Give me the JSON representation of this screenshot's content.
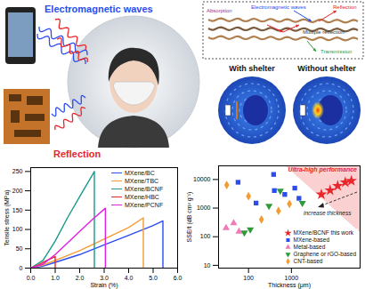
{
  "chart_data": [
    {
      "type": "line",
      "x_label": "Strain (%)",
      "y_label": "Tensile stress (MPa)",
      "xlim": [
        0,
        6
      ],
      "xticks": [
        0,
        1,
        2,
        3,
        4,
        5,
        6
      ],
      "ylim": [
        0,
        260
      ],
      "yticks": [
        0,
        50,
        100,
        150,
        200,
        250
      ],
      "legend": "upper right",
      "series": [
        {
          "name": "MXene/BC",
          "color": "#2b4cf0",
          "x": [
            0,
            0.5,
            1,
            2,
            3,
            4,
            5,
            5.4,
            5.4
          ],
          "values": [
            0,
            5,
            15,
            35,
            60,
            85,
            110,
            122,
            0
          ]
        },
        {
          "name": "MXene/TBC",
          "color": "#f39c34",
          "x": [
            0,
            0.5,
            1,
            2,
            3,
            4,
            4.6,
            4.6
          ],
          "values": [
            0,
            8,
            20,
            45,
            75,
            105,
            130,
            0
          ]
        },
        {
          "name": "MXene/BCNF",
          "color": "#1a9a8a",
          "x": [
            0,
            0.5,
            1,
            1.5,
            2,
            2.6,
            2.6
          ],
          "values": [
            0,
            20,
            70,
            130,
            185,
            250,
            0
          ]
        },
        {
          "name": "MXene/HBC",
          "color": "#e8262b",
          "x": [
            0,
            0.3,
            0.6,
            0.9,
            1.0,
            1.0
          ],
          "values": [
            0,
            8,
            18,
            27,
            30,
            0
          ]
        },
        {
          "name": "MXene/PCNF",
          "color": "#e020e0",
          "x": [
            0,
            0.5,
            1,
            1.5,
            2,
            2.5,
            3.05,
            3.05
          ],
          "values": [
            0,
            10,
            35,
            65,
            95,
            125,
            155,
            0
          ]
        }
      ]
    },
    {
      "type": "scatter",
      "x_label": "Thickness (μm)",
      "y_label": "SSE/t (dB cm² g⁻¹)",
      "log": true,
      "xlim": [
        20,
        40000
      ],
      "xticks": [
        100,
        1000
      ],
      "ylim": [
        8,
        30000
      ],
      "yticks": [
        10,
        100,
        1000,
        10000
      ],
      "legend": "lower right",
      "annotations": [
        "Ultra-high performance",
        "increase thickness"
      ],
      "series": [
        {
          "name": "MXene/BCNF this work",
          "color": "#e8262b",
          "marker": "star",
          "x": [
            5000,
            8000,
            12000,
            18000,
            25000
          ],
          "values": [
            3000,
            4200,
            6000,
            8000,
            9000
          ]
        },
        {
          "name": "MXene-based",
          "color": "#2b4cf0",
          "marker": "square",
          "x": [
            57,
            385,
            400,
            700,
            1200,
            1500,
            150
          ],
          "values": [
            8000,
            15000,
            4100,
            3000,
            5000,
            2200,
            1500
          ]
        },
        {
          "name": "Metal-based",
          "color": "#f07ab8",
          "marker": "triangle",
          "x": [
            30,
            45,
            60
          ],
          "values": [
            200,
            300,
            150
          ]
        },
        {
          "name": "Graphene or rGO-based",
          "color": "#2e9a3a",
          "marker": "triangle-down",
          "x": [
            80,
            110,
            550,
            300,
            1800
          ],
          "values": [
            140,
            180,
            4000,
            1200,
            1500
          ]
        },
        {
          "name": "CNT-based",
          "color": "#f39c34",
          "marker": "diamond",
          "x": [
            31,
            100,
            900,
            200,
            500
          ],
          "values": [
            6400,
            2600,
            1400,
            400,
            800
          ]
        }
      ]
    }
  ],
  "illustration": {
    "shielding": {
      "waves": "Electromagnetic waves",
      "reflection": "Reflection"
    },
    "mechanism": {
      "absorption": "Absorption",
      "waves": "Electromagnetic waves",
      "reflection": "Reflection",
      "multiple": "Multiple reflection",
      "transmission": "Transmission"
    },
    "simulation": {
      "left": "With shelter",
      "right": "Without shelter"
    }
  }
}
